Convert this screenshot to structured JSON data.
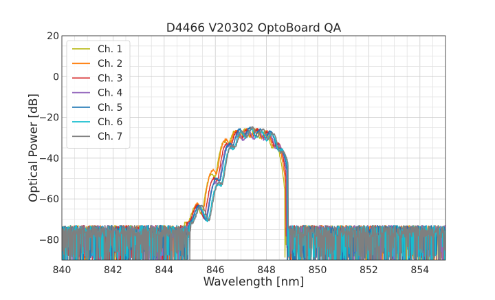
{
  "chart_data": {
    "type": "line",
    "title": "D4466 V20302 OptoBoard QA",
    "xlabel": "Wavelength [nm]",
    "ylabel": "Optical Power [dB]",
    "xlim": [
      840,
      855
    ],
    "ylim": [
      -90,
      20
    ],
    "xticks": [
      840,
      842,
      844,
      846,
      848,
      850,
      852,
      854
    ],
    "yticks": [
      20,
      0,
      -20,
      -40,
      -60,
      -80
    ],
    "grid": true,
    "legend_position": "top-left",
    "series": [
      {
        "name": "Ch. 1",
        "color": "#bcbd22",
        "offset": -0.06,
        "peaks": [
          [
            845.25,
            -64
          ],
          [
            845.85,
            -48
          ],
          [
            846.35,
            -32
          ],
          [
            846.75,
            -27
          ],
          [
            847.15,
            -26
          ],
          [
            847.55,
            -26
          ],
          [
            847.95,
            -27
          ],
          [
            848.35,
            -34
          ]
        ]
      },
      {
        "name": "Ch. 2",
        "color": "#ff7f0e",
        "offset": 0.0,
        "peaks": [
          [
            845.3,
            -63
          ],
          [
            845.9,
            -46
          ],
          [
            846.4,
            -31
          ],
          [
            846.8,
            -27
          ],
          [
            847.2,
            -26
          ],
          [
            847.6,
            -26
          ],
          [
            848.0,
            -27
          ],
          [
            848.4,
            -33
          ]
        ]
      },
      {
        "name": "Ch. 3",
        "color": "#d62728",
        "offset": 0.04,
        "peaks": [
          [
            845.3,
            -64
          ],
          [
            845.95,
            -50
          ],
          [
            846.45,
            -33
          ],
          [
            846.85,
            -27
          ],
          [
            847.25,
            -26
          ],
          [
            847.65,
            -26
          ],
          [
            848.05,
            -27
          ],
          [
            848.45,
            -33
          ]
        ]
      },
      {
        "name": "Ch. 4",
        "color": "#9467bd",
        "offset": 0.08,
        "peaks": [
          [
            845.35,
            -65
          ],
          [
            846.0,
            -52
          ],
          [
            846.5,
            -34
          ],
          [
            846.9,
            -28
          ],
          [
            847.3,
            -27
          ],
          [
            847.7,
            -27
          ],
          [
            848.1,
            -28
          ],
          [
            848.5,
            -34
          ]
        ]
      },
      {
        "name": "Ch. 5",
        "color": "#1f77b4",
        "offset": 0.12,
        "peaks": [
          [
            845.35,
            -64
          ],
          [
            846.05,
            -50
          ],
          [
            846.55,
            -33
          ],
          [
            846.95,
            -26
          ],
          [
            847.35,
            -25
          ],
          [
            847.75,
            -26
          ],
          [
            848.15,
            -27
          ],
          [
            848.55,
            -35
          ]
        ]
      },
      {
        "name": "Ch. 6",
        "color": "#17becf",
        "offset": 0.16,
        "peaks": [
          [
            845.4,
            -65
          ],
          [
            846.1,
            -53
          ],
          [
            846.6,
            -35
          ],
          [
            847.0,
            -27
          ],
          [
            847.4,
            -26
          ],
          [
            847.8,
            -27
          ],
          [
            848.2,
            -28
          ],
          [
            848.6,
            -36
          ]
        ]
      },
      {
        "name": "Ch. 7",
        "color": "#7f7f7f",
        "offset": 0.2,
        "peaks": [
          [
            845.45,
            -64
          ],
          [
            846.15,
            -52
          ],
          [
            846.65,
            -34
          ],
          [
            847.05,
            -27
          ],
          [
            847.45,
            -25
          ],
          [
            847.85,
            -26
          ],
          [
            848.25,
            -28
          ],
          [
            848.65,
            -37
          ]
        ]
      }
    ]
  }
}
